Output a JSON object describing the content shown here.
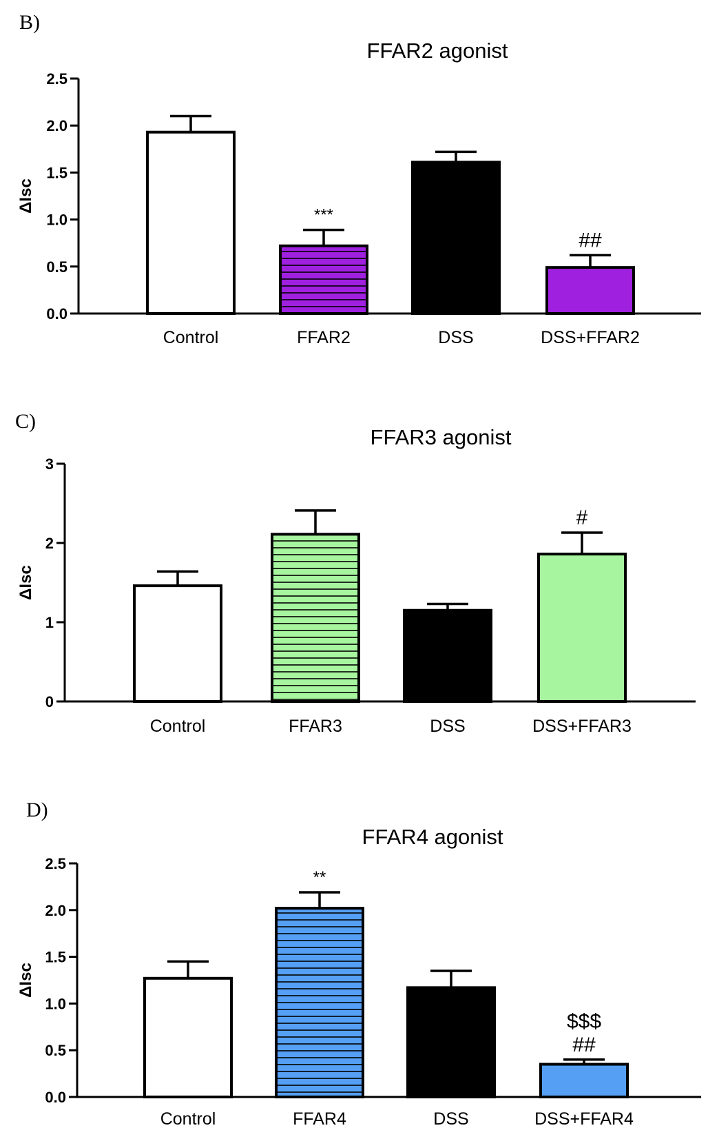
{
  "chart_data": [
    {
      "type": "bar",
      "panel_label": "B)",
      "title": "FFAR2 agonist",
      "ylabel": "ΔIsc",
      "xlabel": "",
      "ylim": [
        0,
        2.5
      ],
      "yticks": [
        "0.0",
        "0.5",
        "1.0",
        "1.5",
        "2.0",
        "2.5"
      ],
      "categories": [
        "Control",
        "FFAR2",
        "DSS",
        "DSS+FFAR2"
      ],
      "values": [
        1.93,
        0.72,
        1.61,
        0.49
      ],
      "errors": [
        0.17,
        0.17,
        0.11,
        0.13
      ],
      "annotations": [
        "",
        "***",
        "",
        "##"
      ],
      "fills": [
        "#ffffff",
        "#a020e0",
        "#000000",
        "#a020e0"
      ],
      "striped": [
        false,
        true,
        false,
        false
      ]
    },
    {
      "type": "bar",
      "panel_label": "C)",
      "title": "FFAR3 agonist",
      "ylabel": "ΔIsc",
      "xlabel": "",
      "ylim": [
        0,
        3
      ],
      "yticks": [
        "0",
        "1",
        "2",
        "3"
      ],
      "categories": [
        "Control",
        "FFAR3",
        "DSS",
        "DSS+FFAR3"
      ],
      "values": [
        1.46,
        2.11,
        1.15,
        1.86
      ],
      "errors": [
        0.18,
        0.3,
        0.08,
        0.27
      ],
      "annotations": [
        "",
        "",
        "",
        "#"
      ],
      "fills": [
        "#ffffff",
        "#a8f5a0",
        "#000000",
        "#a8f5a0"
      ],
      "striped": [
        false,
        true,
        false,
        false
      ]
    },
    {
      "type": "bar",
      "panel_label": "D)",
      "title": "FFAR4 agonist",
      "ylabel": "ΔIsc",
      "xlabel": "",
      "ylim": [
        0,
        2.5
      ],
      "yticks": [
        "0.0",
        "0.5",
        "1.0",
        "1.5",
        "2.0",
        "2.5"
      ],
      "categories": [
        "Control",
        "FFAR4",
        "DSS",
        "DSS+FFAR4"
      ],
      "values": [
        1.27,
        2.02,
        1.17,
        0.35
      ],
      "errors": [
        0.18,
        0.17,
        0.18,
        0.05
      ],
      "annotations": [
        "",
        "**",
        "",
        "$$$\n##"
      ],
      "fills": [
        "#ffffff",
        "#55a0f5",
        "#000000",
        "#55a0f5"
      ],
      "striped": [
        false,
        true,
        false,
        false
      ]
    }
  ]
}
